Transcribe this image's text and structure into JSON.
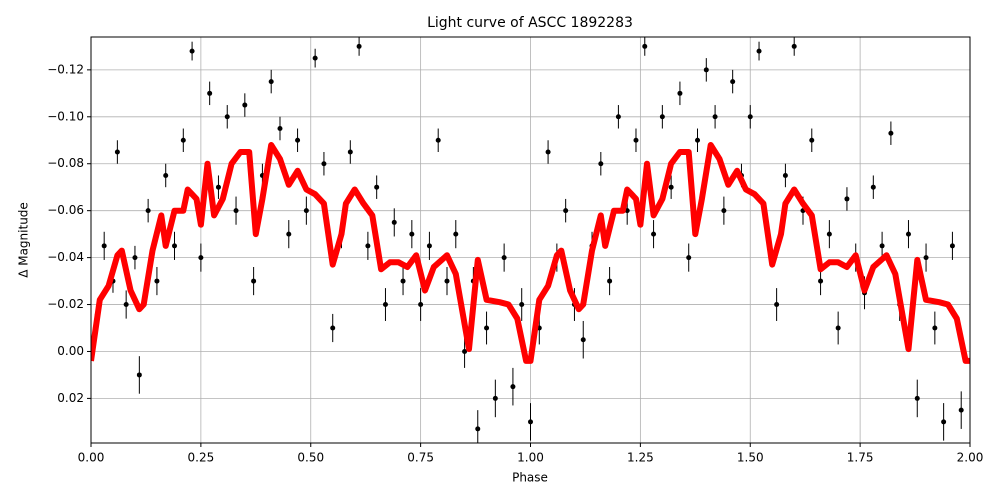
{
  "chart_data": {
    "type": "line",
    "title": "Light curve of ASCC 1892283",
    "x_label": "Phase",
    "y_label": "Δ Magnitude",
    "xlim": [
      0,
      2
    ],
    "ylim": [
      0.039,
      -0.134
    ],
    "grid": true,
    "xticks": [
      {
        "value": 0,
        "label": "0.00"
      },
      {
        "value": 0.25,
        "label": "0.25"
      },
      {
        "value": 0.5,
        "label": "0.50"
      },
      {
        "value": 0.75,
        "label": "0.75"
      },
      {
        "value": 1,
        "label": "1.00"
      },
      {
        "value": 1.25,
        "label": "1.25"
      },
      {
        "value": 1.5,
        "label": "1.50"
      },
      {
        "value": 1.75,
        "label": "1.75"
      },
      {
        "value": 2,
        "label": "2.00"
      }
    ],
    "yticks": [
      {
        "value": -0.12,
        "label": "−0.12"
      },
      {
        "value": -0.1,
        "label": "−0.10"
      },
      {
        "value": -0.08,
        "label": "−0.08"
      },
      {
        "value": -0.06,
        "label": "−0.06"
      },
      {
        "value": -0.04,
        "label": "−0.04"
      },
      {
        "value": -0.02,
        "label": "−0.02"
      },
      {
        "value": 0,
        "label": "0.00"
      },
      {
        "value": 0.02,
        "label": "0.02"
      }
    ],
    "series": [
      {
        "type": "errorbar",
        "color": "#000000",
        "x": [
          0.01,
          0.03,
          0.05,
          0.06,
          0.08,
          0.1,
          0.11,
          0.13,
          0.15,
          0.17,
          0.19,
          0.21,
          0.23,
          0.25,
          0.27,
          0.29,
          0.31,
          0.33,
          0.35,
          0.37,
          0.39,
          0.41,
          0.43,
          0.45,
          0.47,
          0.49,
          0.51,
          0.53,
          0.55,
          0.57,
          0.59,
          0.61,
          0.63,
          0.65,
          0.67,
          0.69,
          0.71,
          0.73,
          0.75,
          0.77,
          0.79,
          0.81,
          0.83,
          0.85,
          0.87,
          0.88,
          0.9,
          0.92,
          0.94,
          0.96,
          0.98,
          1.0,
          1.02,
          1.04,
          1.06,
          1.08,
          1.1,
          1.12,
          1.14,
          1.16,
          1.18,
          1.2,
          1.22,
          1.24,
          1.26,
          1.28,
          1.3,
          1.32,
          1.34,
          1.36,
          1.38,
          1.4,
          1.42,
          1.44,
          1.46,
          1.48,
          1.5,
          1.52,
          1.54,
          1.56,
          1.58,
          1.6,
          1.62,
          1.64,
          1.66,
          1.68,
          1.7,
          1.72,
          1.74,
          1.76,
          1.78,
          1.8,
          1.82,
          1.84,
          1.86,
          1.88,
          1.9,
          1.92,
          1.94,
          1.96,
          1.98
        ],
        "values": [
          -0.01,
          -0.045,
          -0.03,
          -0.085,
          -0.02,
          -0.04,
          0.01,
          -0.06,
          -0.03,
          -0.075,
          -0.045,
          -0.09,
          -0.128,
          -0.04,
          -0.11,
          -0.07,
          -0.1,
          -0.06,
          -0.105,
          -0.03,
          -0.075,
          -0.115,
          -0.095,
          -0.05,
          -0.09,
          -0.06,
          -0.125,
          -0.08,
          -0.01,
          -0.05,
          -0.085,
          -0.13,
          -0.045,
          -0.07,
          -0.02,
          -0.055,
          -0.03,
          -0.05,
          -0.02,
          -0.045,
          -0.09,
          -0.03,
          -0.05,
          0.0,
          -0.03,
          0.033,
          -0.01,
          0.02,
          -0.04,
          0.015,
          -0.02,
          0.03,
          -0.01,
          -0.085,
          -0.04,
          -0.06,
          -0.02,
          -0.005,
          -0.045,
          -0.08,
          -0.03,
          -0.1,
          -0.06,
          -0.09,
          -0.13,
          -0.05,
          -0.1,
          -0.07,
          -0.11,
          -0.04,
          -0.09,
          -0.12,
          -0.1,
          -0.06,
          -0.115,
          -0.075,
          -0.1,
          -0.128,
          -0.05,
          -0.02,
          -0.075,
          -0.13,
          -0.06,
          -0.09,
          -0.03,
          -0.05,
          -0.01,
          -0.065,
          -0.04,
          -0.025,
          -0.07,
          -0.045,
          -0.093,
          -0.02,
          -0.05,
          0.02,
          -0.04,
          -0.01,
          0.03,
          -0.045,
          0.025
        ],
        "errors": [
          0.006,
          0.006,
          0.005,
          0.005,
          0.006,
          0.005,
          0.008,
          0.005,
          0.006,
          0.005,
          0.006,
          0.005,
          0.004,
          0.006,
          0.005,
          0.005,
          0.005,
          0.006,
          0.005,
          0.006,
          0.005,
          0.005,
          0.005,
          0.006,
          0.005,
          0.006,
          0.004,
          0.005,
          0.006,
          0.006,
          0.005,
          0.004,
          0.006,
          0.005,
          0.007,
          0.006,
          0.006,
          0.006,
          0.007,
          0.006,
          0.005,
          0.006,
          0.006,
          0.007,
          0.006,
          0.008,
          0.007,
          0.008,
          0.006,
          0.008,
          0.007,
          0.008,
          0.007,
          0.005,
          0.006,
          0.005,
          0.007,
          0.008,
          0.006,
          0.005,
          0.006,
          0.005,
          0.006,
          0.005,
          0.004,
          0.006,
          0.005,
          0.005,
          0.005,
          0.006,
          0.005,
          0.005,
          0.005,
          0.006,
          0.005,
          0.005,
          0.005,
          0.004,
          0.006,
          0.007,
          0.005,
          0.004,
          0.006,
          0.005,
          0.006,
          0.006,
          0.007,
          0.005,
          0.006,
          0.007,
          0.005,
          0.006,
          0.005,
          0.007,
          0.006,
          0.008,
          0.006,
          0.007,
          0.008,
          0.006,
          0.008
        ]
      },
      {
        "type": "line",
        "color": "#ff0000",
        "x": [
          0,
          0.02,
          0.04,
          0.06,
          0.07,
          0.09,
          0.11,
          0.12,
          0.14,
          0.16,
          0.17,
          0.19,
          0.21,
          0.22,
          0.24,
          0.25,
          0.265,
          0.28,
          0.3,
          0.32,
          0.34,
          0.36,
          0.375,
          0.39,
          0.41,
          0.43,
          0.45,
          0.47,
          0.49,
          0.51,
          0.53,
          0.55,
          0.57,
          0.58,
          0.6,
          0.62,
          0.64,
          0.66,
          0.68,
          0.7,
          0.72,
          0.74,
          0.76,
          0.78,
          0.81,
          0.83,
          0.86,
          0.88,
          0.9,
          0.93,
          0.95,
          0.97,
          0.99,
          1.0,
          1.02,
          1.04,
          1.06,
          1.07,
          1.09,
          1.11,
          1.12,
          1.14,
          1.16,
          1.17,
          1.19,
          1.21,
          1.22,
          1.24,
          1.25,
          1.265,
          1.28,
          1.3,
          1.32,
          1.34,
          1.36,
          1.375,
          1.39,
          1.41,
          1.43,
          1.45,
          1.47,
          1.49,
          1.51,
          1.53,
          1.55,
          1.57,
          1.58,
          1.6,
          1.62,
          1.64,
          1.66,
          1.68,
          1.7,
          1.72,
          1.74,
          1.76,
          1.78,
          1.81,
          1.83,
          1.86,
          1.88,
          1.9,
          1.93,
          1.95,
          1.97,
          1.99,
          2.0
        ],
        "values": [
          0.004,
          -0.022,
          -0.028,
          -0.041,
          -0.043,
          -0.026,
          -0.018,
          -0.02,
          -0.043,
          -0.058,
          -0.045,
          -0.06,
          -0.06,
          -0.069,
          -0.065,
          -0.054,
          -0.08,
          -0.058,
          -0.065,
          -0.08,
          -0.085,
          -0.085,
          -0.05,
          -0.065,
          -0.088,
          -0.082,
          -0.071,
          -0.077,
          -0.069,
          -0.067,
          -0.063,
          -0.037,
          -0.05,
          -0.063,
          -0.069,
          -0.063,
          -0.058,
          -0.035,
          -0.038,
          -0.038,
          -0.036,
          -0.041,
          -0.026,
          -0.036,
          -0.041,
          -0.033,
          -0.001,
          -0.039,
          -0.022,
          -0.021,
          -0.02,
          -0.014,
          0.004,
          0.004,
          -0.022,
          -0.028,
          -0.041,
          -0.043,
          -0.026,
          -0.018,
          -0.02,
          -0.043,
          -0.058,
          -0.045,
          -0.06,
          -0.06,
          -0.069,
          -0.065,
          -0.054,
          -0.08,
          -0.058,
          -0.065,
          -0.08,
          -0.085,
          -0.085,
          -0.05,
          -0.065,
          -0.088,
          -0.082,
          -0.071,
          -0.077,
          -0.069,
          -0.067,
          -0.063,
          -0.037,
          -0.05,
          -0.063,
          -0.069,
          -0.063,
          -0.058,
          -0.035,
          -0.038,
          -0.038,
          -0.036,
          -0.041,
          -0.026,
          -0.036,
          -0.041,
          -0.033,
          -0.001,
          -0.039,
          -0.022,
          -0.021,
          -0.02,
          -0.014,
          0.004,
          0.004
        ]
      }
    ]
  }
}
